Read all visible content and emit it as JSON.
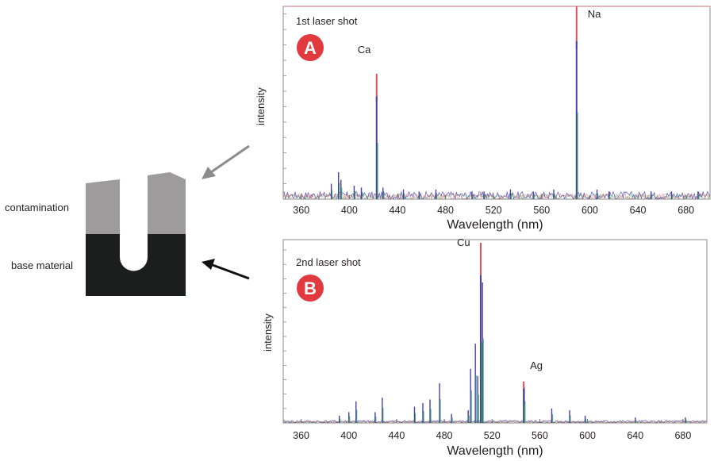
{
  "schematic": {
    "contamination_label": "contamination",
    "base_material_label": "base material"
  },
  "colors": {
    "contamination": "#9d9b9b",
    "base": "#1c1e1d",
    "badge": "#e03a3e",
    "spectrum_blue": "#4b3fa8",
    "spectrum_green": "#3aa86b",
    "spectrum_red": "#e0505a",
    "arrow_grey": "#8c8c8c",
    "arrow_black": "#111111"
  },
  "chart_data": [
    {
      "type": "line",
      "badge": "A",
      "annotation": "1st laser shot",
      "xlabel": "Wavelength (nm)",
      "ylabel": "intensity",
      "xlim": [
        345,
        700
      ],
      "ylim": [
        0,
        100
      ],
      "x_ticks": [
        360,
        400,
        440,
        480,
        520,
        560,
        600,
        640,
        680
      ],
      "x_tick_labels": [
        "360",
        "400",
        "440",
        "480",
        "520",
        "560",
        "600",
        "640",
        "680"
      ],
      "peaks": [
        {
          "label": "Ca",
          "x": 422.7,
          "y": 65
        },
        {
          "label": "Na",
          "x": 589.0,
          "y": 100
        }
      ],
      "minor_peaks": [
        {
          "x": 385,
          "y": 8
        },
        {
          "x": 391,
          "y": 14
        },
        {
          "x": 393,
          "y": 10
        },
        {
          "x": 404,
          "y": 7
        },
        {
          "x": 410,
          "y": 6
        },
        {
          "x": 428,
          "y": 6
        },
        {
          "x": 445,
          "y": 5
        },
        {
          "x": 458,
          "y": 4
        },
        {
          "x": 472,
          "y": 5
        },
        {
          "x": 502,
          "y": 4
        },
        {
          "x": 512,
          "y": 4
        },
        {
          "x": 534,
          "y": 5
        },
        {
          "x": 553,
          "y": 4
        },
        {
          "x": 570,
          "y": 5
        },
        {
          "x": 606,
          "y": 5
        },
        {
          "x": 616,
          "y": 4
        },
        {
          "x": 651,
          "y": 4
        },
        {
          "x": 668,
          "y": 4
        },
        {
          "x": 690,
          "y": 4
        }
      ],
      "noise_level": 4
    },
    {
      "type": "line",
      "badge": "B",
      "annotation": "2nd laser shot",
      "xlabel": "Wavelength (nm)",
      "ylabel": "intensity",
      "xlim": [
        345,
        700
      ],
      "ylim": [
        0,
        100
      ],
      "x_ticks": [
        360,
        400,
        440,
        480,
        520,
        560,
        600,
        640,
        680
      ],
      "x_tick_labels": [
        "360",
        "400",
        "440",
        "480",
        "520",
        "560",
        "600",
        "640",
        "680"
      ],
      "peaks": [
        {
          "label": "Cu",
          "x": 510.5,
          "y": 100
        },
        {
          "label": "Ag",
          "x": 546.5,
          "y": 23
        }
      ],
      "minor_peaks": [
        {
          "x": 392,
          "y": 4
        },
        {
          "x": 400,
          "y": 6
        },
        {
          "x": 406,
          "y": 12
        },
        {
          "x": 422,
          "y": 6
        },
        {
          "x": 428,
          "y": 14
        },
        {
          "x": 455,
          "y": 9
        },
        {
          "x": 462,
          "y": 11
        },
        {
          "x": 468,
          "y": 13
        },
        {
          "x": 476,
          "y": 22
        },
        {
          "x": 486,
          "y": 5
        },
        {
          "x": 500,
          "y": 7
        },
        {
          "x": 502,
          "y": 30
        },
        {
          "x": 506,
          "y": 44
        },
        {
          "x": 508,
          "y": 26
        },
        {
          "x": 512,
          "y": 78
        },
        {
          "x": 547,
          "y": 20
        },
        {
          "x": 570,
          "y": 8
        },
        {
          "x": 585,
          "y": 7
        },
        {
          "x": 598,
          "y": 4
        },
        {
          "x": 640,
          "y": 3
        },
        {
          "x": 682,
          "y": 3
        }
      ],
      "noise_level": 1.5
    }
  ]
}
